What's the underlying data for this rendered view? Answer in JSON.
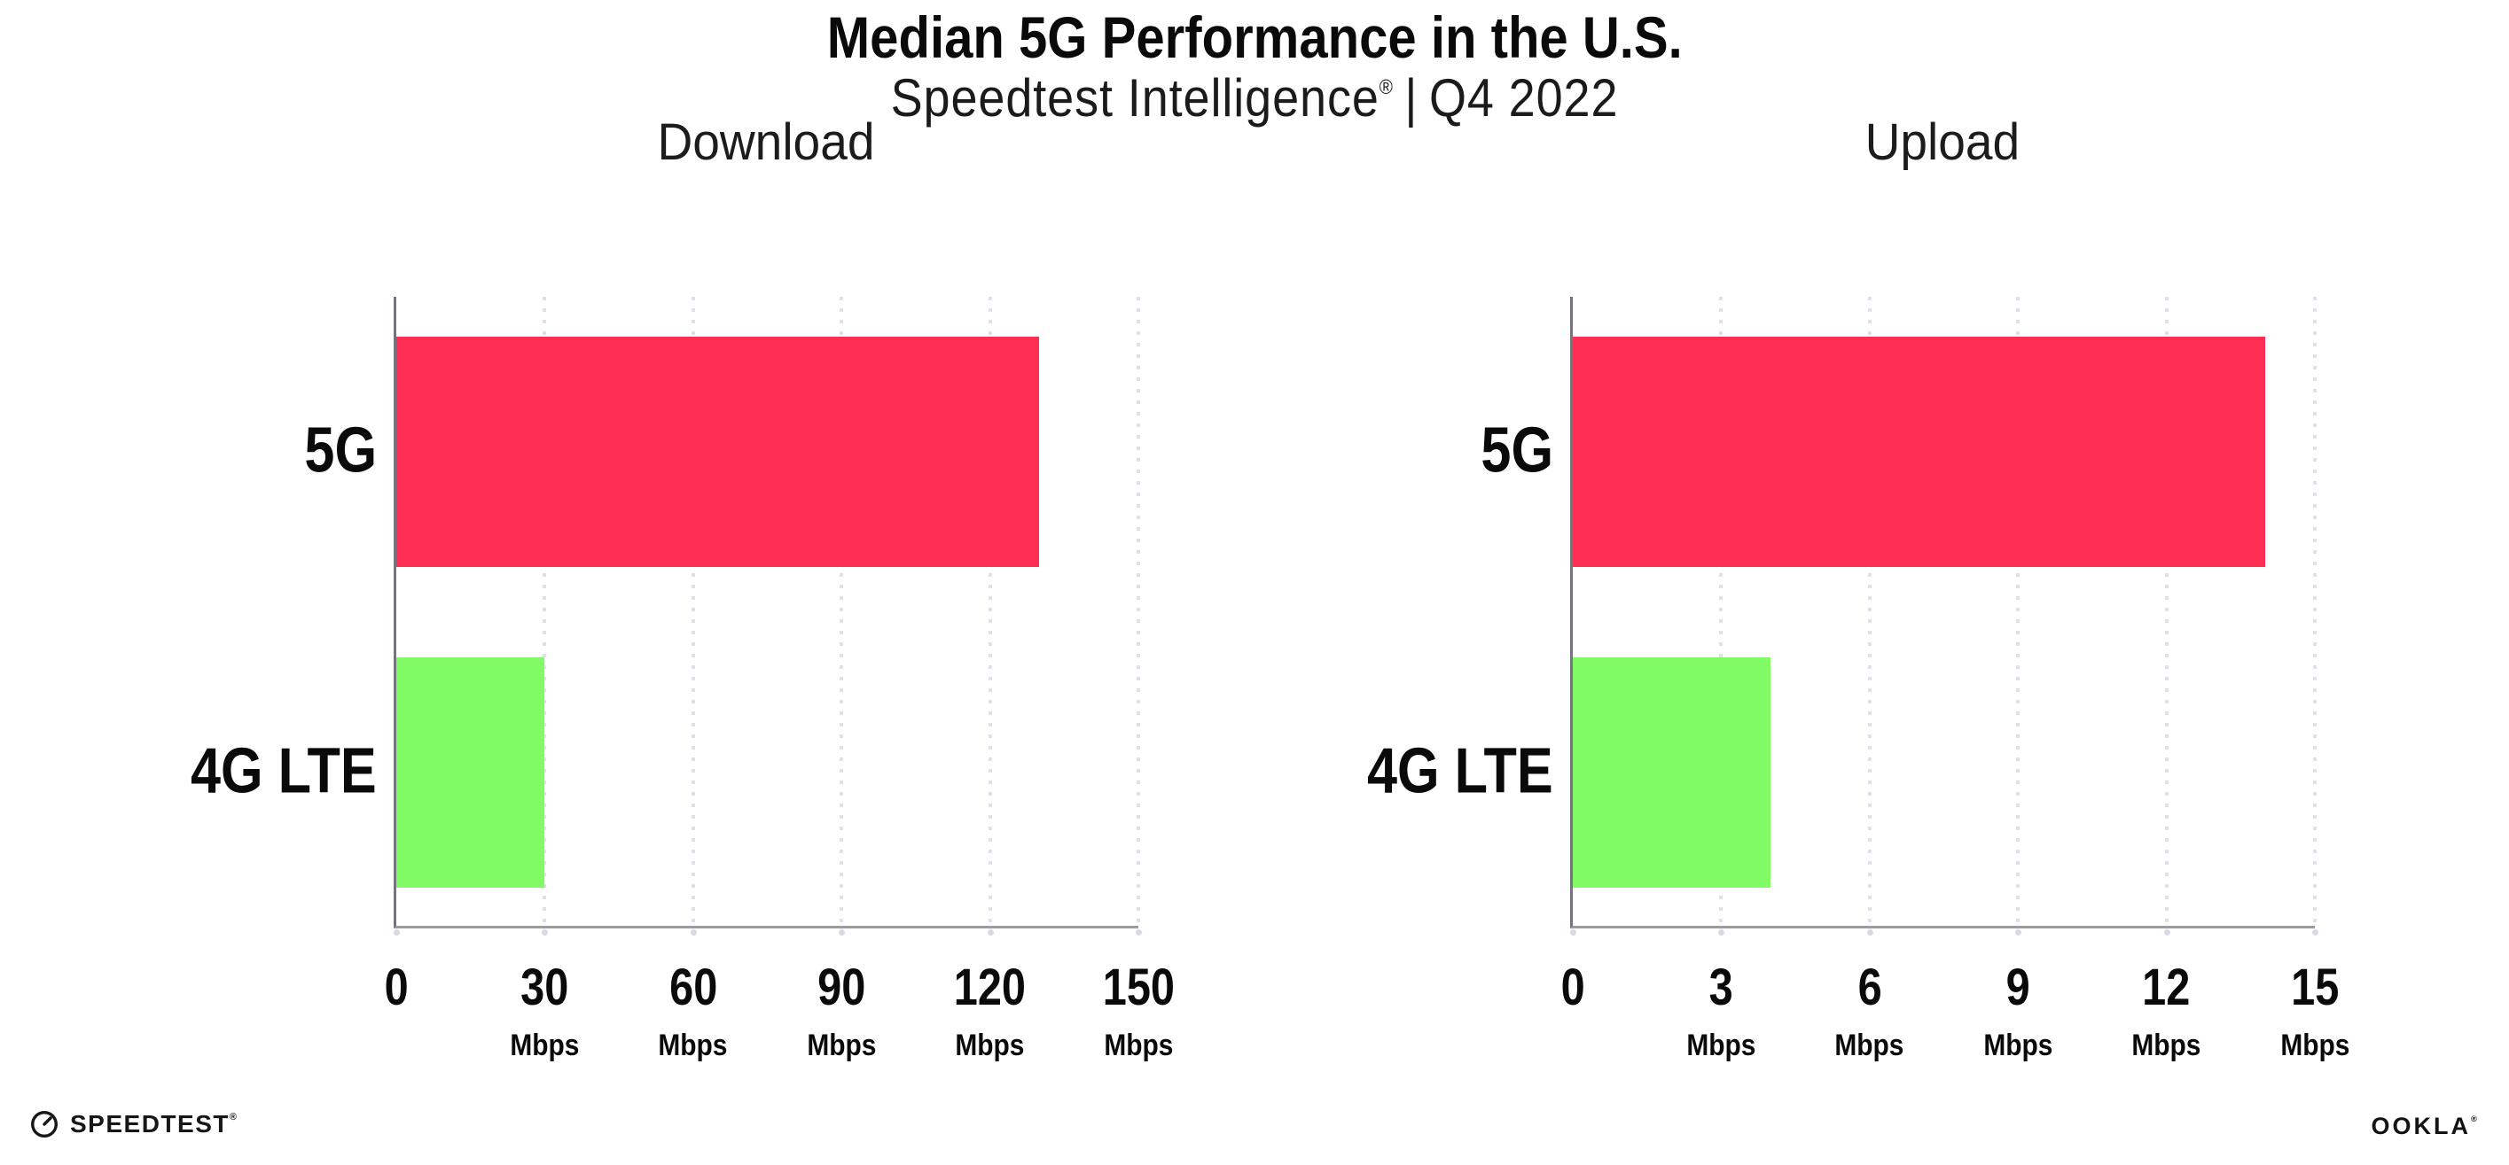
{
  "header": {
    "title": "Median 5G Performance in the U.S.",
    "subtitle_brand": "Speedtest Intelligence",
    "subtitle_reg": "®",
    "subtitle_sep": "|",
    "subtitle_period": "Q4 2022"
  },
  "footer": {
    "speedtest_label": "SPEEDTEST",
    "speedtest_reg": "®",
    "ookla_label": "OOKLA",
    "ookla_reg": "®"
  },
  "colors": {
    "bar_5g": "#FF2E55",
    "bar_4g_lte": "#80FB66",
    "axis_y": "#74747e",
    "axis_x": "#9b9ba3",
    "gridline": "#e0dfea",
    "text": "#0a0a0a"
  },
  "chart_data": [
    {
      "type": "bar",
      "orientation": "horizontal",
      "title": "Download",
      "categories": [
        "5G",
        "4G LTE"
      ],
      "values": [
        130,
        30
      ],
      "unit": "Mbps",
      "xlim": [
        0,
        150
      ],
      "xticks": [
        0,
        30,
        60,
        90,
        120,
        150
      ],
      "bar_colors": [
        "#FF2E55",
        "#80FB66"
      ],
      "grid": "dotted-vertical",
      "legend": "none"
    },
    {
      "type": "bar",
      "orientation": "horizontal",
      "title": "Upload",
      "categories": [
        "5G",
        "4G LTE"
      ],
      "values": [
        14,
        4
      ],
      "unit": "Mbps",
      "xlim": [
        0,
        15
      ],
      "xticks": [
        0,
        3,
        6,
        9,
        12,
        15
      ],
      "bar_colors": [
        "#FF2E55",
        "#80FB66"
      ],
      "grid": "dotted-vertical",
      "legend": "none"
    }
  ]
}
